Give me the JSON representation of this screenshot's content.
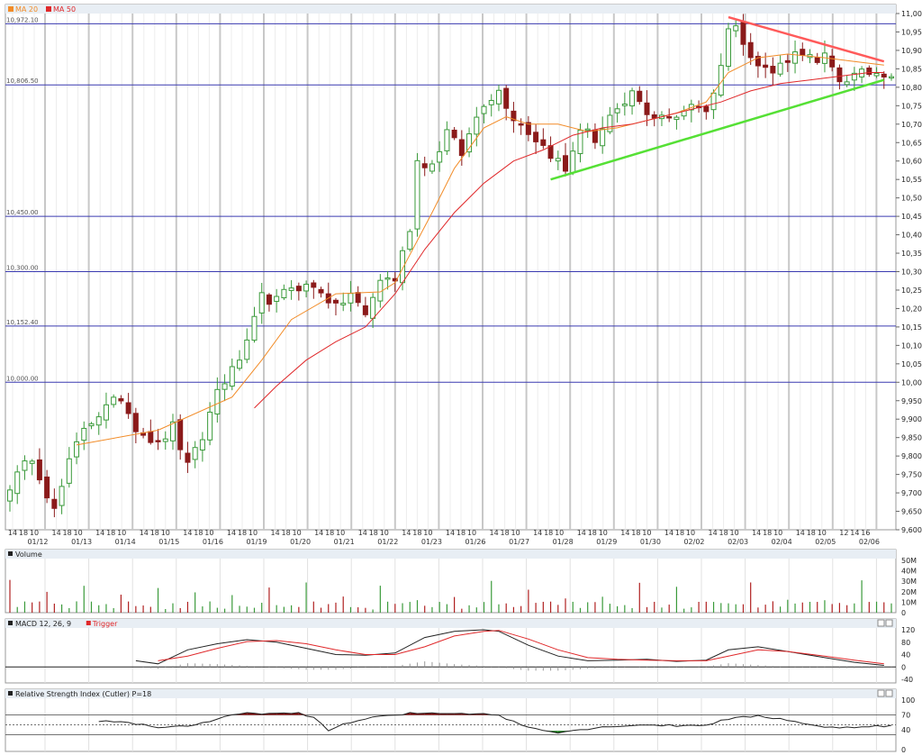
{
  "chart_data": [
    {
      "type": "candlestick",
      "panel": "price",
      "legend": [
        {
          "name": "MA 20",
          "color": "#f28c28"
        },
        {
          "name": "MA 50",
          "color": "#e0282a"
        }
      ],
      "ylim": [
        9600,
        11000
      ],
      "yticks": [
        "9,600",
        "9,650",
        "9,700",
        "9,750",
        "9,800",
        "9,850",
        "9,900",
        "9,950",
        "10,000",
        "10,050",
        "10,100",
        "10,150",
        "10,200",
        "10,250",
        "10,300",
        "10,350",
        "10,400",
        "10,450",
        "10,500",
        "10,550",
        "10,600",
        "10,650",
        "10,700",
        "10,750",
        "10,800",
        "10,850",
        "10,900",
        "10,950",
        "11,000"
      ],
      "hlines": [
        {
          "value": 10972.1,
          "label": "10,972.10"
        },
        {
          "value": 10806.5,
          "label": "10,806.50"
        },
        {
          "value": 10450.0,
          "label": "10,450.00"
        },
        {
          "value": 10300.0,
          "label": "10,300.00"
        },
        {
          "value": 10152.4,
          "label": "10,152.40"
        },
        {
          "value": 10000.0,
          "label": "10,000.00"
        }
      ],
      "dates": [
        "01/12",
        "01/13",
        "01/14",
        "01/15",
        "01/16",
        "01/19",
        "01/20",
        "01/21",
        "01/22",
        "01/23",
        "01/26",
        "01/27",
        "01/28",
        "01/29",
        "01/30",
        "02/02",
        "02/03",
        "02/04",
        "02/05",
        "02/06"
      ],
      "session_ticks": [
        "14",
        "18",
        "10",
        "14",
        "18",
        "10",
        "14",
        "18",
        "10",
        "14",
        "18",
        "10",
        "14",
        "18",
        "10",
        "14",
        "18",
        "10",
        "14",
        "18",
        "10",
        "14",
        "18",
        "10",
        "14",
        "18",
        "10",
        "14",
        "18",
        "10",
        "14",
        "18",
        "10",
        "14",
        "18",
        "10",
        "14",
        "18",
        "10",
        "14",
        "18",
        "10",
        "14",
        "18",
        "10",
        "14",
        "18",
        "10",
        "14",
        "18",
        "10",
        "14",
        "18",
        "10",
        "14",
        "18",
        "10",
        "12",
        "14",
        "16",
        "18"
      ],
      "close_points": [
        [
          0,
          9720
        ],
        [
          3,
          9800
        ],
        [
          6,
          9650
        ],
        [
          8,
          9780
        ],
        [
          10,
          9880
        ],
        [
          13,
          9930
        ],
        [
          15,
          9960
        ],
        [
          17,
          9880
        ],
        [
          20,
          9830
        ],
        [
          22,
          9880
        ],
        [
          24,
          9770
        ],
        [
          26,
          9850
        ],
        [
          28,
          9980
        ],
        [
          30,
          10030
        ],
        [
          32,
          10100
        ],
        [
          34,
          10230
        ],
        [
          36,
          10220
        ],
        [
          38,
          10260
        ],
        [
          40,
          10260
        ],
        [
          42,
          10250
        ],
        [
          44,
          10200
        ],
        [
          46,
          10240
        ],
        [
          48,
          10180
        ],
        [
          50,
          10280
        ],
        [
          52,
          10280
        ],
        [
          54,
          10420
        ],
        [
          55,
          10600
        ],
        [
          57,
          10590
        ],
        [
          59,
          10680
        ],
        [
          61,
          10620
        ],
        [
          63,
          10720
        ],
        [
          64,
          10760
        ],
        [
          66,
          10790
        ],
        [
          68,
          10720
        ],
        [
          70,
          10680
        ],
        [
          72,
          10640
        ],
        [
          74,
          10600
        ],
        [
          75,
          10570
        ],
        [
          77,
          10690
        ],
        [
          79,
          10660
        ],
        [
          81,
          10720
        ],
        [
          83,
          10740
        ],
        [
          84,
          10790
        ],
        [
          86,
          10720
        ],
        [
          88,
          10730
        ],
        [
          90,
          10710
        ],
        [
          92,
          10760
        ],
        [
          94,
          10740
        ],
        [
          95,
          10780
        ],
        [
          97,
          10960
        ],
        [
          98,
          10960
        ],
        [
          99,
          10930
        ],
        [
          101,
          10860
        ],
        [
          103,
          10840
        ],
        [
          105,
          10880
        ],
        [
          107,
          10900
        ],
        [
          109,
          10860
        ],
        [
          110,
          10880
        ],
        [
          112,
          10820
        ],
        [
          114,
          10830
        ],
        [
          116,
          10840
        ],
        [
          118,
          10840
        ]
      ],
      "ma20": [
        [
          9,
          9830
        ],
        [
          20,
          9870
        ],
        [
          30,
          9960
        ],
        [
          34,
          10060
        ],
        [
          38,
          10170
        ],
        [
          44,
          10240
        ],
        [
          50,
          10245
        ],
        [
          52,
          10270
        ],
        [
          57,
          10460
        ],
        [
          60,
          10580
        ],
        [
          64,
          10690
        ],
        [
          67,
          10720
        ],
        [
          70,
          10700
        ],
        [
          74,
          10700
        ],
        [
          78,
          10680
        ],
        [
          82,
          10690
        ],
        [
          86,
          10710
        ],
        [
          90,
          10730
        ],
        [
          94,
          10760
        ],
        [
          97,
          10840
        ],
        [
          101,
          10880
        ],
        [
          105,
          10890
        ],
        [
          110,
          10880
        ],
        [
          114,
          10870
        ],
        [
          118,
          10860
        ]
      ],
      "ma50": [
        [
          33,
          9930
        ],
        [
          36,
          9990
        ],
        [
          40,
          10060
        ],
        [
          44,
          10110
        ],
        [
          48,
          10150
        ],
        [
          52,
          10240
        ],
        [
          56,
          10360
        ],
        [
          60,
          10460
        ],
        [
          64,
          10540
        ],
        [
          68,
          10600
        ],
        [
          72,
          10630
        ],
        [
          76,
          10670
        ],
        [
          80,
          10690
        ],
        [
          84,
          10700
        ],
        [
          88,
          10720
        ],
        [
          92,
          10740
        ],
        [
          96,
          10760
        ],
        [
          100,
          10790
        ],
        [
          104,
          10810
        ],
        [
          108,
          10820
        ],
        [
          112,
          10830
        ],
        [
          116,
          10840
        ],
        [
          118,
          10840
        ]
      ],
      "trendlines": [
        {
          "color": "#ff5a5a",
          "from": [
            97,
            10990
          ],
          "to": [
            118,
            10870
          ]
        },
        {
          "color": "#55e035",
          "from": [
            73,
            10550
          ],
          "to": [
            118,
            10820
          ]
        }
      ]
    },
    {
      "type": "bar",
      "panel": "volume",
      "title": "Volume",
      "yticks": [
        "50M",
        "40M",
        "30M",
        "20M",
        "10M",
        "0"
      ],
      "ylim": [
        0,
        50
      ]
    },
    {
      "type": "line",
      "panel": "macd",
      "title": "MACD 12, 26, 9",
      "legend": [
        {
          "name": "Trigger",
          "color": "#e0282a"
        }
      ],
      "yticks": [
        "120",
        "80",
        "40",
        "0",
        "-40"
      ],
      "ylim": [
        -40,
        120
      ],
      "macd": [
        [
          17,
          20
        ],
        [
          20,
          10
        ],
        [
          24,
          55
        ],
        [
          28,
          75
        ],
        [
          32,
          88
        ],
        [
          36,
          80
        ],
        [
          40,
          60
        ],
        [
          44,
          40
        ],
        [
          48,
          38
        ],
        [
          52,
          45
        ],
        [
          56,
          95
        ],
        [
          60,
          115
        ],
        [
          64,
          120
        ],
        [
          66,
          115
        ],
        [
          70,
          70
        ],
        [
          74,
          35
        ],
        [
          78,
          20
        ],
        [
          82,
          22
        ],
        [
          86,
          25
        ],
        [
          90,
          18
        ],
        [
          94,
          22
        ],
        [
          97,
          55
        ],
        [
          101,
          65
        ],
        [
          105,
          50
        ],
        [
          110,
          30
        ],
        [
          114,
          15
        ],
        [
          118,
          5
        ]
      ],
      "trigger": [
        [
          20,
          20
        ],
        [
          24,
          35
        ],
        [
          28,
          60
        ],
        [
          32,
          82
        ],
        [
          36,
          85
        ],
        [
          40,
          75
        ],
        [
          44,
          55
        ],
        [
          48,
          40
        ],
        [
          52,
          40
        ],
        [
          56,
          65
        ],
        [
          60,
          100
        ],
        [
          64,
          115
        ],
        [
          66,
          118
        ],
        [
          70,
          90
        ],
        [
          74,
          55
        ],
        [
          78,
          30
        ],
        [
          82,
          25
        ],
        [
          86,
          22
        ],
        [
          90,
          20
        ],
        [
          94,
          20
        ],
        [
          97,
          35
        ],
        [
          101,
          55
        ],
        [
          105,
          50
        ],
        [
          110,
          35
        ],
        [
          114,
          22
        ],
        [
          118,
          10
        ]
      ]
    },
    {
      "type": "area",
      "panel": "rsi",
      "title": "Relative Strength Index (Cutler) P=18",
      "yticks": [
        "100",
        "70",
        "40",
        "0"
      ],
      "ylim": [
        0,
        100
      ],
      "levels": [
        70,
        50,
        30
      ],
      "rsi": [
        [
          12,
          58
        ],
        [
          16,
          55
        ],
        [
          20,
          45
        ],
        [
          24,
          48
        ],
        [
          28,
          60
        ],
        [
          30,
          70
        ],
        [
          33,
          74
        ],
        [
          37,
          72
        ],
        [
          39,
          73
        ],
        [
          41,
          65
        ],
        [
          43,
          40
        ],
        [
          46,
          55
        ],
        [
          50,
          68
        ],
        [
          52,
          68
        ],
        [
          54,
          73
        ],
        [
          58,
          74
        ],
        [
          62,
          73
        ],
        [
          65,
          72
        ],
        [
          66,
          68
        ],
        [
          70,
          45
        ],
        [
          74,
          35
        ],
        [
          78,
          42
        ],
        [
          82,
          48
        ],
        [
          86,
          50
        ],
        [
          90,
          48
        ],
        [
          94,
          50
        ],
        [
          97,
          62
        ],
        [
          101,
          68
        ],
        [
          105,
          60
        ],
        [
          110,
          44
        ],
        [
          114,
          46
        ],
        [
          118,
          48
        ]
      ]
    }
  ]
}
